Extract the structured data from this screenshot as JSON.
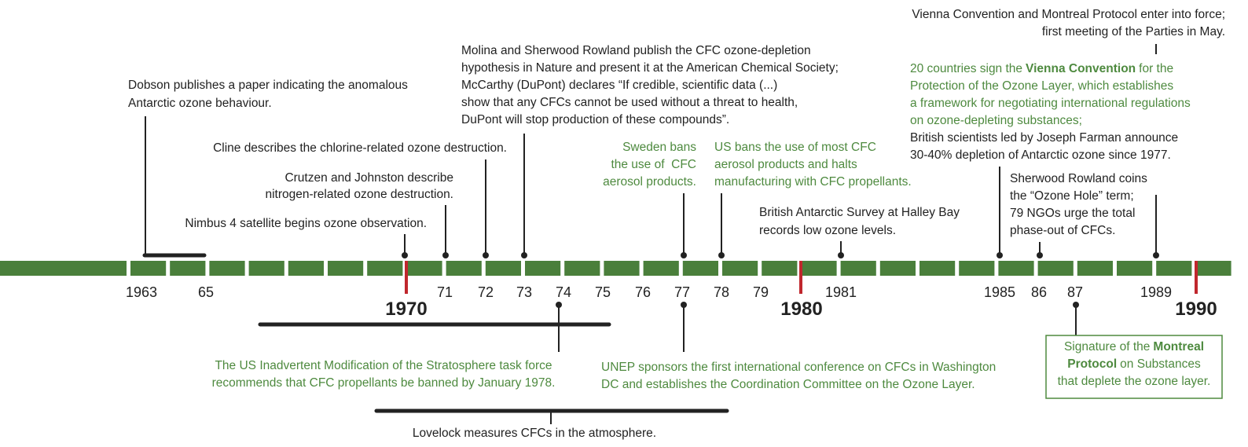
{
  "years": [
    "1963",
    "65",
    "1970",
    "71",
    "72",
    "73",
    "74",
    "75",
    "76",
    "77",
    "78",
    "79",
    "1980",
    "1981",
    "1985",
    "86",
    "87",
    "1989",
    "1990"
  ],
  "events": [
    {
      "lines": [
        "Dobson publishes a paper indicating the anomalous",
        "Antarctic ozone behaviour."
      ]
    },
    {
      "lines": [
        "Cline describes the chlorine-related ozone destruction."
      ]
    },
    {
      "lines": [
        "Crutzen and Johnston describe",
        "nitrogen-related ozone destruction."
      ]
    },
    {
      "lines": [
        "Nimbus 4 satellite begins ozone observation."
      ]
    },
    {
      "lines": [
        "Molina and Sherwood Rowland publish the CFC ozone-depletion",
        "hypothesis in Nature and present it at the American Chemical Society;",
        "McCarthy (DuPont) declares “If credible, scientific data (...)",
        "show that any CFCs cannot be used without a threat to health,",
        "DuPont will stop production of these compounds”."
      ]
    },
    {
      "lines": [
        "Sweden bans",
        "the use of  CFC",
        "aerosol products."
      ]
    },
    {
      "lines": [
        "US bans the use of most CFC",
        "aerosol products and halts",
        "manufacturing with CFC propellants."
      ]
    },
    {
      "lines": [
        "British Antarctic Survey at Halley Bay",
        "records low ozone levels."
      ]
    },
    {
      "lines": [
        "Vienna Convention and Montreal Protocol enter into force;",
        "first meeting of the Parties in May."
      ]
    },
    {
      "lines": [
        [
          "20 countries sign the",
          "Vienna Convention",
          "for the"
        ],
        "Protection of the Ozone Layer, which establishes",
        "a framework for negotiating international regulations",
        "on ozone-depleting substances;"
      ],
      "extra": [
        "British scientists led by Joseph Farman announce",
        "30-40% depletion of Antarctic ozone since 1977."
      ]
    },
    {
      "lines": [
        "Sherwood Rowland coins",
        "the “Ozone Hole” term;",
        "79 NGOs urge the total",
        "phase-out of CFCs."
      ]
    },
    {
      "lines": [
        "The US Inadvertent Modification of the Stratosphere task force",
        "recommends that CFC propellants be banned by January 1978."
      ]
    },
    {
      "lines": [
        "UNEP sponsors the first international conference on CFCs in Washington",
        "DC and establishes the Coordination Committee on the Ozone Layer."
      ]
    },
    {
      "lines": [
        "Lovelock measures CFCs in the atmosphere."
      ]
    },
    {
      "lines": [
        [
          "Signature of the",
          "Montreal"
        ],
        [
          "Protocol",
          "on Substances"
        ],
        "that deplete the ozone layer."
      ]
    }
  ]
}
